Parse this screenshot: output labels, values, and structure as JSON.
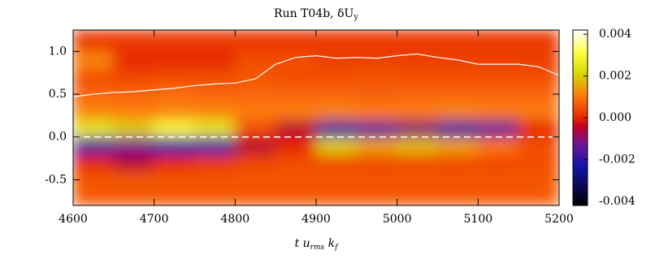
{
  "chart_data": {
    "type": "heatmap",
    "title": "Run T04b, δU",
    "title_subscript": "y",
    "xlabel": [
      {
        "text": "t  u"
      },
      {
        "text": "rms",
        "sub": true
      },
      {
        "text": " k"
      },
      {
        "text": "f",
        "sub": true
      }
    ],
    "xlim": [
      4600,
      5200
    ],
    "xticks": [
      4600,
      4700,
      4800,
      4900,
      5000,
      5100,
      5200
    ],
    "ylim": [
      -0.8,
      1.25
    ],
    "yticks": [
      -0.5,
      {
        "value": 0,
        "label": "0.0"
      },
      0.5,
      {
        "value": 1,
        "label": "1.0"
      }
    ],
    "xbins": [
      4600,
      4650,
      4700,
      4750,
      4800,
      4850,
      4900,
      4950,
      5000,
      5050,
      5100,
      5150,
      5200
    ],
    "ybins": [
      -0.8,
      -0.6,
      -0.4,
      -0.2,
      0,
      0.2,
      0.4,
      0.6,
      0.8,
      1.0,
      1.25
    ],
    "z": [
      [
        0.0006,
        0.0006,
        0.0006,
        0.0006,
        0.0006,
        0.0006,
        0.0006,
        0.0006,
        0.0006,
        0.0006,
        0.0006,
        0.0006
      ],
      [
        0.0006,
        0.0006,
        0.0006,
        0.0006,
        0.0006,
        0.0006,
        0.0006,
        0.0006,
        0.0006,
        0.0006,
        0.0006,
        0.0006
      ],
      [
        0.0,
        -0.0005,
        0.0,
        0.0002,
        0.0004,
        0.0005,
        0.0004,
        0.0004,
        0.0004,
        0.0004,
        0.0004,
        0.0005
      ],
      [
        -0.0018,
        -0.0012,
        -0.0022,
        -0.002,
        -0.0005,
        0.0,
        0.002,
        0.0015,
        0.0018,
        0.0015,
        0.001,
        0.0005
      ],
      [
        0.0025,
        0.002,
        0.003,
        0.0025,
        0.0005,
        -0.0005,
        -0.002,
        -0.0015,
        -0.001,
        -0.002,
        -0.0015,
        0.0
      ],
      [
        0.0012,
        0.0011,
        0.0012,
        0.0012,
        0.0011,
        0.0011,
        0.0012,
        0.0011,
        0.0011,
        0.0012,
        0.0011,
        0.0011
      ],
      [
        0.0008,
        0.0008,
        0.0009,
        0.0008,
        0.0008,
        0.0008,
        0.0008,
        0.0007,
        0.0008,
        0.0008,
        0.0008,
        0.0008
      ],
      [
        0.0005,
        0.0004,
        0.0005,
        0.0005,
        0.0006,
        0.0005,
        0.0005,
        0.0006,
        0.0005,
        0.0005,
        0.0005,
        0.0005
      ],
      [
        0.0012,
        0.0,
        0.0,
        0.0,
        0.0005,
        0.0005,
        0.0003,
        0.0003,
        0.0003,
        0.0003,
        0.0003,
        0.0003
      ],
      [
        0.0002,
        0.0002,
        0.0002,
        0.0002,
        0.0002,
        0.0002,
        0.0002,
        0.0002,
        0.0002,
        0.0002,
        0.0002,
        0.0002
      ]
    ],
    "clim": [
      -0.0042,
      0.0042
    ],
    "cticks": [
      -0.004,
      -0.002,
      {
        "value": 0,
        "label": "0.000"
      },
      0.002,
      0.004
    ],
    "series": [
      {
        "color": "#ffffff",
        "x": [
          4600,
          4625,
          4650,
          4675,
          4700,
          4725,
          4750,
          4775,
          4800,
          4825,
          4850,
          4875,
          4900,
          4925,
          4950,
          4975,
          5000,
          5025,
          5050,
          5075,
          5100,
          5125,
          5150,
          5175,
          5200
        ],
        "values": [
          0.47,
          0.5,
          0.52,
          0.53,
          0.55,
          0.57,
          0.6,
          0.62,
          0.63,
          0.68,
          0.85,
          0.93,
          0.95,
          0.92,
          0.93,
          0.92,
          0.95,
          0.97,
          0.93,
          0.9,
          0.85,
          0.85,
          0.85,
          0.82,
          0.72
        ]
      }
    ],
    "reference_y": 0,
    "reference_color": "#ffffff"
  }
}
